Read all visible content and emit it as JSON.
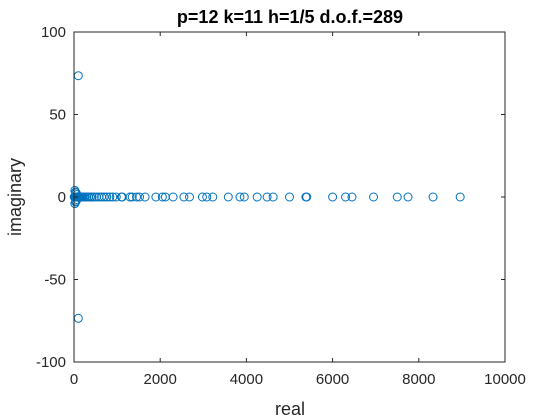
{
  "chart_data": {
    "type": "scatter",
    "title": "p=12 k=11 h=1/5 d.o.f.=289",
    "xlabel": "real",
    "ylabel": "imaginary",
    "xlim": [
      0,
      10000
    ],
    "ylim": [
      -100,
      100
    ],
    "xticks": [
      "0",
      "2000",
      "4000",
      "6000",
      "8000",
      "10000"
    ],
    "yticks": [
      "100",
      "50",
      "0",
      "-50",
      "-100"
    ],
    "grid": false,
    "marker": "open-circle",
    "color": "#0072BD",
    "points": [
      [
        100,
        73.5
      ],
      [
        100,
        -73.5
      ],
      [
        20,
        4
      ],
      [
        20,
        -4
      ],
      [
        35,
        3
      ],
      [
        35,
        -3
      ],
      [
        50,
        2.5
      ],
      [
        50,
        -2.5
      ],
      [
        70,
        1.5
      ],
      [
        70,
        -1.5
      ],
      [
        5,
        0
      ],
      [
        15,
        0
      ],
      [
        30,
        0
      ],
      [
        45,
        0
      ],
      [
        60,
        0
      ],
      [
        80,
        0
      ],
      [
        100,
        0
      ],
      [
        120,
        0
      ],
      [
        140,
        0
      ],
      [
        160,
        0
      ],
      [
        180,
        0
      ],
      [
        200,
        0
      ],
      [
        230,
        0
      ],
      [
        260,
        0
      ],
      [
        300,
        0
      ],
      [
        340,
        0
      ],
      [
        380,
        0
      ],
      [
        420,
        0
      ],
      [
        470,
        0
      ],
      [
        520,
        0
      ],
      [
        580,
        0
      ],
      [
        640,
        0
      ],
      [
        700,
        0
      ],
      [
        760,
        0
      ],
      [
        830,
        0
      ],
      [
        900,
        0
      ],
      [
        980,
        0
      ],
      [
        1100,
        0
      ],
      [
        1120,
        0
      ],
      [
        1300,
        0
      ],
      [
        1350,
        0
      ],
      [
        1450,
        0
      ],
      [
        1520,
        0
      ],
      [
        1650,
        0
      ],
      [
        1900,
        0
      ],
      [
        2050,
        0
      ],
      [
        2120,
        0
      ],
      [
        2300,
        0
      ],
      [
        2550,
        0
      ],
      [
        2680,
        0
      ],
      [
        2980,
        0
      ],
      [
        3080,
        0
      ],
      [
        3220,
        0
      ],
      [
        3580,
        0
      ],
      [
        3850,
        0
      ],
      [
        3950,
        0
      ],
      [
        4250,
        0
      ],
      [
        4480,
        0
      ],
      [
        4620,
        0
      ],
      [
        5000,
        0
      ],
      [
        5380,
        0
      ],
      [
        5400,
        0
      ],
      [
        6000,
        0
      ],
      [
        6300,
        0
      ],
      [
        6450,
        0
      ],
      [
        6950,
        0
      ],
      [
        7500,
        0
      ],
      [
        7750,
        0
      ],
      [
        8330,
        0
      ],
      [
        8960,
        0
      ]
    ]
  }
}
